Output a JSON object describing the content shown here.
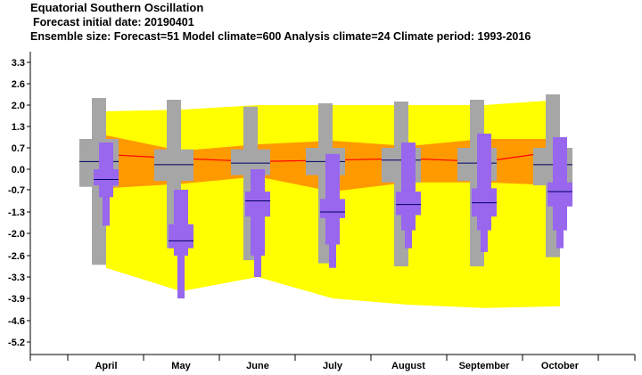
{
  "header": {
    "title": "Equatorial Southern Oscillation",
    "subtitle": "Forecast initial date: 20190401",
    "info": "Ensemble size: Forecast=51 Model climate=600 Analysis climate=24   Climate period: 1993-2016"
  },
  "colors": {
    "outer_band": "#ffff00",
    "inner_band": "#ff9900",
    "climate_box": "#a6a6a6",
    "forecast_box": "#9966ee",
    "median_line": "#000066",
    "climate_median_line": "#ff0000"
  },
  "chart_data": {
    "type": "boxplot",
    "categories": [
      "April",
      "May",
      "June",
      "July",
      "August",
      "September",
      "October"
    ],
    "y_tick_labels": [
      "3.3",
      "2.6",
      "2.0",
      "1.3",
      "0.7",
      "0.0",
      "-0.7",
      "-1.3",
      "-2.0",
      "-2.6",
      "-3.3",
      "-3.9",
      "-4.6",
      "-5.2"
    ],
    "ylim": [
      -5.6,
      3.6
    ],
    "climate_band_outer": {
      "upper": [
        1.8,
        1.85,
        2.0,
        2.0,
        2.0,
        2.0,
        2.15
      ],
      "lower": [
        -3.0,
        -3.7,
        -3.3,
        -3.9,
        -4.1,
        -4.2,
        -4.15
      ]
    },
    "climate_band_inner": {
      "upper": [
        1.05,
        0.6,
        0.8,
        0.9,
        0.75,
        0.95,
        0.95
      ],
      "lower": [
        -0.65,
        -0.5,
        -0.25,
        -0.75,
        -0.45,
        -0.45,
        -0.55
      ]
    },
    "climate_median": [
      0.48,
      0.35,
      0.25,
      0.3,
      0.35,
      0.25,
      0.6
    ],
    "model_climate": [
      {
        "min": -2.9,
        "p10": -0.65,
        "p25": -0.6,
        "median": 0.25,
        "p75": 0.95,
        "p90": 0.95,
        "max": 2.2
      },
      {
        "min": -2.4,
        "p10": -0.45,
        "p25": -0.4,
        "median": 0.15,
        "p75": 0.65,
        "p90": 0.65,
        "max": 2.15
      },
      {
        "min": -2.75,
        "p10": -0.2,
        "p25": -0.2,
        "median": 0.2,
        "p75": 0.65,
        "p90": 0.65,
        "max": 1.95
      },
      {
        "min": -2.85,
        "p10": -0.2,
        "p25": -0.2,
        "median": 0.25,
        "p75": 0.7,
        "p90": 0.7,
        "max": 2.05
      },
      {
        "min": -2.95,
        "p10": -0.45,
        "p25": -0.45,
        "median": 0.3,
        "p75": 0.7,
        "p90": 0.7,
        "max": 2.1
      },
      {
        "min": -2.95,
        "p10": -0.45,
        "p25": -0.4,
        "median": 0.2,
        "p75": 0.7,
        "p90": 0.7,
        "max": 2.15
      },
      {
        "min": -2.65,
        "p10": -0.55,
        "p25": -0.55,
        "median": 0.15,
        "p75": 0.7,
        "p90": 0.7,
        "max": 2.3
      }
    ],
    "forecast": [
      {
        "min": -1.75,
        "p10": -0.9,
        "p25": -0.55,
        "median": -0.35,
        "p75": 0.0,
        "p90": 0.85,
        "max": 0.85
      },
      {
        "min": -3.9,
        "p10": -2.6,
        "p25": -2.4,
        "median": -2.2,
        "p75": -1.7,
        "p90": -0.7,
        "max": -0.7
      },
      {
        "min": -3.3,
        "p10": -2.6,
        "p25": -1.45,
        "median": -1.0,
        "p75": -0.75,
        "p90": 0.0,
        "max": 0.0
      },
      {
        "min": -3.0,
        "p10": -2.3,
        "p25": -1.5,
        "median": -1.3,
        "p75": -0.95,
        "p90": 0.5,
        "max": 0.5
      },
      {
        "min": -2.4,
        "p10": -1.9,
        "p25": -1.4,
        "median": -1.1,
        "p75": -0.75,
        "p90": 0.85,
        "max": 0.85
      },
      {
        "min": -2.5,
        "p10": -1.9,
        "p25": -1.45,
        "median": -1.05,
        "p75": -0.65,
        "p90": 1.1,
        "max": 1.1
      },
      {
        "min": -2.4,
        "p10": -1.9,
        "p25": -1.15,
        "median": -0.75,
        "p75": -0.45,
        "p90": 1.0,
        "max": 1.0
      }
    ]
  }
}
